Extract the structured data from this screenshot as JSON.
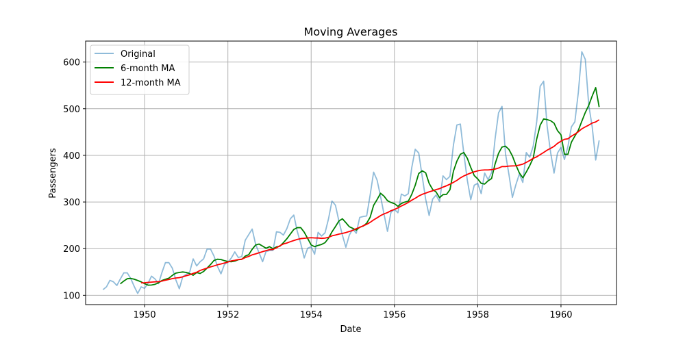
{
  "chart_data": {
    "type": "line",
    "title": "Moving Averages",
    "xlabel": "Date",
    "ylabel": "Passengers",
    "xlim": [
      "1948-08",
      "1961-05"
    ],
    "ylim": [
      80,
      645
    ],
    "x_ticks": [
      "1950",
      "1952",
      "1954",
      "1956",
      "1958",
      "1960"
    ],
    "y_ticks": [
      "100",
      "200",
      "300",
      "400",
      "500",
      "600"
    ],
    "grid": true,
    "legend_position": "top-left",
    "x_start": "1949-01",
    "series": [
      {
        "name": "Original",
        "color": "#1f77b4",
        "opacity": 0.5,
        "values": [
          112,
          118,
          132,
          129,
          121,
          135,
          148,
          148,
          136,
          119,
          104,
          118,
          115,
          126,
          141,
          135,
          125,
          149,
          170,
          170,
          158,
          133,
          114,
          140,
          145,
          150,
          178,
          163,
          172,
          178,
          199,
          199,
          184,
          162,
          146,
          166,
          171,
          180,
          193,
          181,
          183,
          218,
          230,
          242,
          209,
          191,
          172,
          194,
          196,
          196,
          236,
          235,
          229,
          243,
          264,
          272,
          237,
          211,
          180,
          201,
          204,
          188,
          235,
          227,
          234,
          264,
          302,
          293,
          259,
          229,
          203,
          229,
          242,
          233,
          267,
          269,
          270,
          315,
          364,
          347,
          312,
          274,
          237,
          278,
          284,
          277,
          317,
          313,
          318,
          374,
          413,
          405,
          355,
          306,
          271,
          306,
          315,
          301,
          356,
          348,
          355,
          422,
          465,
          467,
          404,
          347,
          305,
          336,
          340,
          318,
          362,
          348,
          363,
          435,
          491,
          505,
          404,
          359,
          310,
          337,
          360,
          342,
          406,
          396,
          420,
          472,
          548,
          559,
          463,
          407,
          362,
          405,
          417,
          391,
          419,
          461,
          472,
          535,
          622,
          606,
          508,
          461,
          390,
          432
        ]
      },
      {
        "name": "6-month MA",
        "color": "#008000",
        "values": [
          null,
          null,
          null,
          null,
          null,
          124.5,
          130.5,
          135.5,
          136.2,
          134.5,
          131.7,
          128.8,
          124.8,
          121.7,
          122.0,
          123.5,
          126.7,
          131.8,
          134.3,
          136.7,
          142.7,
          147.5,
          149.0,
          150.0,
          149.0,
          146.5,
          143.0,
          148.7,
          146.8,
          151.0,
          158.3,
          166.0,
          174.7,
          177.3,
          176.7,
          174.2,
          172.5,
          172.0,
          173.3,
          176.3,
          177.0,
          184.0,
          187.0,
          198.7,
          207.8,
          209.8,
          205.5,
          200.8,
          204.2,
          199.8,
          203.8,
          205.3,
          212.8,
          221.2,
          231.2,
          241.2,
          245.0,
          245.0,
          235.3,
          221.7,
          208.0,
          204.2,
          207.0,
          209.0,
          212.8,
          222.5,
          236.0,
          247.3,
          259.2,
          264.0,
          255.7,
          247.0,
          243.5,
          239.7,
          246.0,
          248.3,
          254.5,
          267.3,
          292.8,
          305.2,
          318.7,
          312.5,
          302.8,
          299.0,
          296.5,
          290.7,
          296.8,
          299.8,
          301.8,
          316.5,
          336.0,
          361.0,
          366.8,
          362.7,
          340.0,
          327.0,
          321.5,
          309.2,
          315.8,
          316.3,
          326.3,
          366.0,
          387.5,
          402.3,
          406.0,
          393.7,
          374.0,
          356.7,
          349.5,
          340.0,
          338.5,
          345.5,
          350.3,
          381.3,
          404.2,
          417.8,
          419.7,
          412.7,
          398.7,
          379.3,
          362.3,
          351.8,
          364.3,
          378.2,
          394.3,
          435.0,
          464.7,
          478.0,
          476.7,
          474.3,
          469.0,
          453.0,
          444.0,
          402.3,
          402.3,
          428.2,
          441.3,
          453.7,
          473.0,
          491.7,
          507.3,
          527.3,
          545.3,
          503.7
        ]
      },
      {
        "name": "12-month MA",
        "color": "#ff0000",
        "values": [
          null,
          null,
          null,
          null,
          null,
          null,
          null,
          null,
          null,
          null,
          null,
          126.7,
          126.9,
          127.6,
          128.3,
          128.8,
          129.2,
          130.4,
          132.2,
          134.0,
          135.8,
          137.0,
          137.8,
          139.6,
          142.0,
          144.0,
          147.0,
          149.3,
          153.3,
          155.8,
          158.3,
          160.8,
          163.0,
          165.4,
          167.1,
          169.2,
          171.3,
          173.8,
          175.0,
          176.5,
          177.4,
          180.8,
          183.3,
          186.7,
          188.8,
          191.2,
          193.5,
          195.8,
          197.8,
          198.2,
          201.8,
          206.2,
          210.0,
          212.1,
          214.9,
          217.4,
          219.8,
          221.5,
          222.2,
          222.9,
          223.5,
          222.9,
          222.8,
          222.1,
          222.5,
          224.3,
          227.4,
          229.2,
          231.1,
          232.6,
          234.5,
          236.8,
          239.1,
          242.9,
          245.6,
          249.1,
          252.1,
          256.4,
          261.6,
          266.1,
          270.8,
          274.5,
          277.3,
          281.3,
          284.1,
          287.4,
          291.5,
          295.0,
          299.0,
          303.9,
          308.0,
          312.8,
          316.4,
          319.0,
          321.8,
          324.0,
          326.6,
          328.6,
          331.9,
          334.8,
          338.1,
          342.1,
          346.4,
          351.7,
          355.8,
          359.2,
          362.1,
          364.7,
          366.8,
          368.2,
          368.7,
          368.7,
          369.4,
          370.5,
          372.7,
          376.0,
          376.0,
          377.0,
          377.4,
          377.5,
          379.2,
          381.2,
          384.9,
          389.0,
          393.7,
          396.8,
          401.6,
          406.1,
          411.1,
          415.0,
          419.3,
          425.7,
          430.3,
          434.4,
          435.5,
          441.1,
          445.4,
          450.6,
          456.8,
          461.0,
          464.8,
          469.3,
          471.6,
          476.2
        ]
      }
    ]
  }
}
